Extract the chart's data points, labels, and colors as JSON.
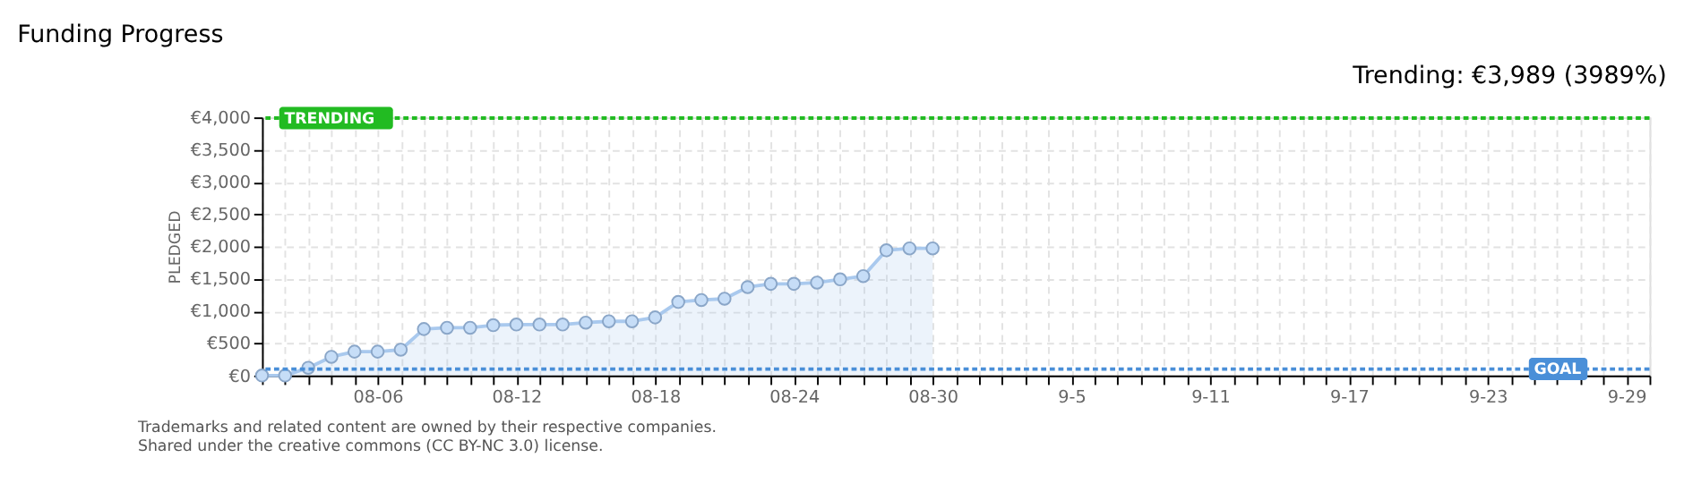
{
  "chart_data": {
    "type": "area",
    "title": "Funding Progress",
    "annotations": [
      "Trending: €3,989 (3989%)",
      "Trademarks and related content are owned by their respective companies.",
      "Shared under the creative commons (CC BY-NC 3.0) license."
    ],
    "ylabel": "PLEDGED",
    "x": [
      "--08-01",
      "--08-02",
      "--08-03",
      "--08-04",
      "--08-05",
      "--08-06",
      "--08-07",
      "--08-08",
      "--08-09",
      "--08-10",
      "--08-11",
      "--08-12",
      "--08-13",
      "--08-14",
      "--08-15",
      "--08-16",
      "--08-17",
      "--08-18",
      "--08-19",
      "--08-20",
      "--08-21",
      "--08-22",
      "--08-23",
      "--08-24",
      "--08-25",
      "--08-26",
      "--08-27",
      "--08-28",
      "--08-29",
      "--08-30"
    ],
    "series": [
      {
        "color": "#a9c9ee",
        "values": [
          0,
          0,
          120,
          290,
          370,
          370,
          400,
          720,
          740,
          740,
          780,
          790,
          790,
          790,
          820,
          840,
          840,
          900,
          1140,
          1170,
          1190,
          1370,
          1420,
          1420,
          1440,
          1490,
          1540,
          1940,
          1970,
          1970
        ]
      }
    ],
    "marker": "circle",
    "xlim": [
      "--08-01",
      "--09-30"
    ],
    "xticks": [
      {
        "value": "--08-01",
        "label": null
      },
      {
        "value": "--08-02",
        "label": null
      },
      {
        "value": "--08-03",
        "label": null
      },
      {
        "value": "--08-04",
        "label": null
      },
      {
        "value": "--08-05",
        "label": null
      },
      {
        "value": "--08-06",
        "label": "08-06"
      },
      {
        "value": "--08-07",
        "label": null
      },
      {
        "value": "--08-08",
        "label": null
      },
      {
        "value": "--08-09",
        "label": null
      },
      {
        "value": "--08-10",
        "label": null
      },
      {
        "value": "--08-11",
        "label": null
      },
      {
        "value": "--08-12",
        "label": "08-12"
      },
      {
        "value": "--08-13",
        "label": null
      },
      {
        "value": "--08-14",
        "label": null
      },
      {
        "value": "--08-15",
        "label": null
      },
      {
        "value": "--08-16",
        "label": null
      },
      {
        "value": "--08-17",
        "label": null
      },
      {
        "value": "--08-18",
        "label": "08-18"
      },
      {
        "value": "--08-19",
        "label": null
      },
      {
        "value": "--08-20",
        "label": null
      },
      {
        "value": "--08-21",
        "label": null
      },
      {
        "value": "--08-22",
        "label": null
      },
      {
        "value": "--08-23",
        "label": null
      },
      {
        "value": "--08-24",
        "label": "08-24"
      },
      {
        "value": "--08-25",
        "label": null
      },
      {
        "value": "--08-26",
        "label": null
      },
      {
        "value": "--08-27",
        "label": null
      },
      {
        "value": "--08-28",
        "label": null
      },
      {
        "value": "--08-29",
        "label": null
      },
      {
        "value": "--08-30",
        "label": "08-30"
      },
      {
        "value": "--08-31",
        "label": null
      },
      {
        "value": "--09-01",
        "label": null
      },
      {
        "value": "--09-02",
        "label": null
      },
      {
        "value": "--09-03",
        "label": null
      },
      {
        "value": "--09-04",
        "label": null
      },
      {
        "value": "--09-05",
        "label": "9-5"
      },
      {
        "value": "--09-06",
        "label": null
      },
      {
        "value": "--09-07",
        "label": null
      },
      {
        "value": "--09-08",
        "label": null
      },
      {
        "value": "--09-09",
        "label": null
      },
      {
        "value": "--09-10",
        "label": null
      },
      {
        "value": "--09-11",
        "label": "9-11"
      },
      {
        "value": "--09-12",
        "label": null
      },
      {
        "value": "--09-13",
        "label": null
      },
      {
        "value": "--09-14",
        "label": null
      },
      {
        "value": "--09-15",
        "label": null
      },
      {
        "value": "--09-16",
        "label": null
      },
      {
        "value": "--09-17",
        "label": "9-17"
      },
      {
        "value": "--09-18",
        "label": null
      },
      {
        "value": "--09-19",
        "label": null
      },
      {
        "value": "--09-20",
        "label": null
      },
      {
        "value": "--09-21",
        "label": null
      },
      {
        "value": "--09-22",
        "label": null
      },
      {
        "value": "--09-23",
        "label": "9-23"
      },
      {
        "value": "--09-24",
        "label": null
      },
      {
        "value": "--09-25",
        "label": null
      },
      {
        "value": "--09-26",
        "label": null
      },
      {
        "value": "--09-27",
        "label": null
      },
      {
        "value": "--09-28",
        "label": null
      },
      {
        "value": "--09-29",
        "label": "9-29"
      },
      {
        "value": "--09-30",
        "label": null
      }
    ],
    "ylim": [
      0,
      4000
    ],
    "yticks": [
      {
        "value": 0,
        "label": "€0"
      },
      {
        "value": 500,
        "label": "€500"
      },
      {
        "value": 1000,
        "label": "€1,000"
      },
      {
        "value": 1500,
        "label": "€1,500"
      },
      {
        "value": 2000,
        "label": "€2,000"
      },
      {
        "value": 2500,
        "label": "€2,500"
      },
      {
        "value": 3000,
        "label": "€3,000"
      },
      {
        "value": 3500,
        "label": "€3,500"
      },
      {
        "value": 4000,
        "label": "€4,000"
      }
    ],
    "grid": true,
    "ref_lines": [
      {
        "axis": "y",
        "value": 3989,
        "label": "TRENDING",
        "color": "#22bb22",
        "line_style": "dotted"
      },
      {
        "axis": "y",
        "value": 100,
        "label": "GOAL",
        "color": "#4a8fd8",
        "line_style": "dotted"
      }
    ]
  }
}
